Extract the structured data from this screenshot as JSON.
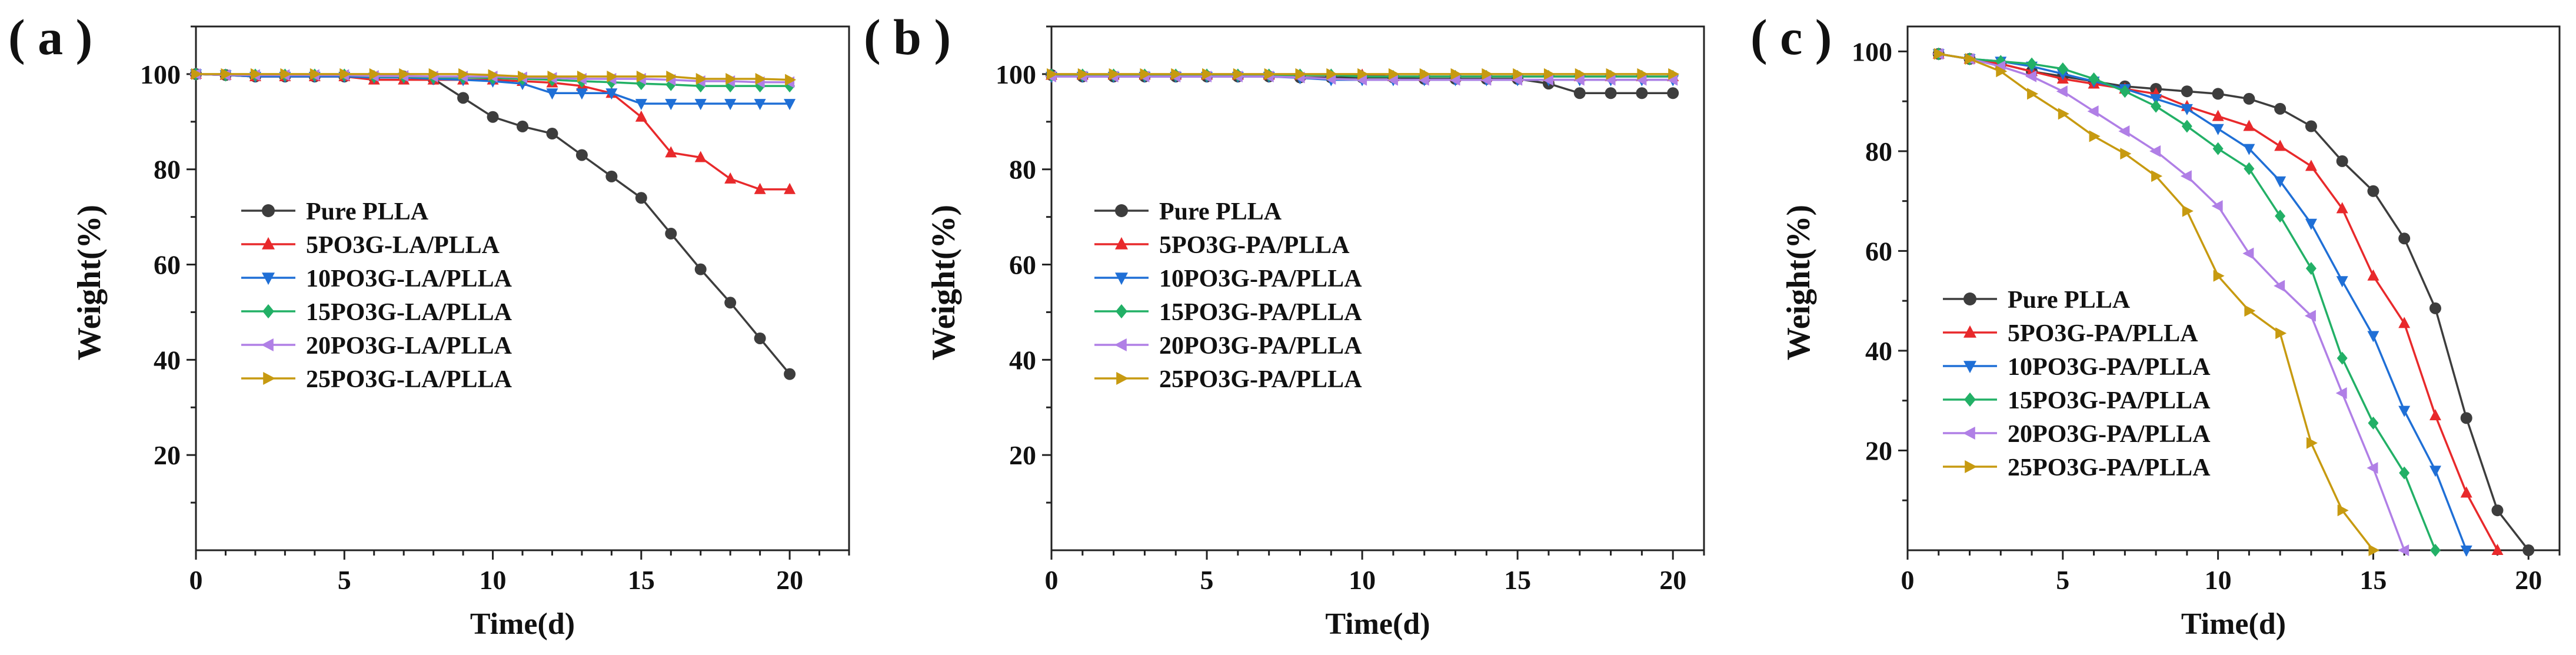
{
  "colors": {
    "pure": "#3d3d3d",
    "p5": "#e8292b",
    "p10": "#1f6fd6",
    "p15": "#22b066",
    "p20": "#b07fe6",
    "p25": "#c79a10"
  },
  "chart_data": [
    {
      "panel_label": "( a )",
      "type": "line",
      "xlabel": "Time(d)",
      "ylabel": "Weight(%)",
      "xlim": [
        0,
        22
      ],
      "ylim": [
        0,
        110
      ],
      "xticks": [
        0,
        5,
        10,
        15,
        20
      ],
      "yticks": [
        20,
        40,
        60,
        80,
        100
      ],
      "legend_position": "center-left",
      "series": [
        {
          "name": "Pure PLLA",
          "color": "pure",
          "marker": "circle",
          "x": [
            0,
            1,
            2,
            3,
            4,
            5,
            6,
            7,
            8,
            9,
            10,
            11,
            12,
            13,
            14,
            15,
            16,
            17,
            18,
            19,
            20
          ],
          "y": [
            100,
            99.8,
            99.5,
            99.5,
            99.5,
            99.5,
            99.3,
            99.5,
            99,
            95,
            91,
            89,
            87.5,
            83,
            78.5,
            74,
            66.5,
            59,
            52,
            44.5,
            37
          ]
        },
        {
          "name": "5PO3G-LA/PLLA",
          "color": "p5",
          "marker": "triangle-up",
          "x": [
            0,
            1,
            2,
            3,
            4,
            5,
            6,
            7,
            8,
            9,
            10,
            11,
            12,
            13,
            14,
            15,
            16,
            17,
            18,
            19,
            20
          ],
          "y": [
            100,
            99.8,
            99.5,
            99.5,
            99.5,
            99.5,
            98.8,
            98.8,
            98.8,
            98.8,
            98.8,
            98.5,
            98.2,
            97.5,
            96,
            91,
            83.5,
            82.5,
            78,
            75.8,
            75.8
          ]
        },
        {
          "name": "10PO3G-LA/PLLA",
          "color": "p10",
          "marker": "triangle-down",
          "x": [
            0,
            1,
            2,
            3,
            4,
            5,
            6,
            7,
            8,
            9,
            10,
            11,
            12,
            13,
            14,
            15,
            16,
            17,
            18,
            19,
            20
          ],
          "y": [
            100,
            99.8,
            99.5,
            99.5,
            99.5,
            99.5,
            99.3,
            99.3,
            99,
            98.8,
            98.5,
            98,
            96,
            96,
            96,
            93.8,
            93.8,
            93.8,
            93.8,
            93.8,
            93.8
          ]
        },
        {
          "name": "15PO3G-LA/PLLA",
          "color": "p15",
          "marker": "diamond",
          "x": [
            0,
            1,
            2,
            3,
            4,
            5,
            6,
            7,
            8,
            9,
            10,
            11,
            12,
            13,
            14,
            15,
            16,
            17,
            18,
            19,
            20
          ],
          "y": [
            100,
            99.8,
            99.8,
            99.8,
            99.8,
            99.8,
            99.5,
            99.5,
            99.3,
            99.3,
            99.2,
            99,
            98.8,
            98.5,
            98.3,
            98,
            97.8,
            97.5,
            97.5,
            97.5,
            97.5
          ]
        },
        {
          "name": "20PO3G-LA/PLLA",
          "color": "p20",
          "marker": "triangle-left",
          "x": [
            0,
            1,
            2,
            3,
            4,
            5,
            6,
            7,
            8,
            9,
            10,
            11,
            12,
            13,
            14,
            15,
            16,
            17,
            18,
            19,
            20
          ],
          "y": [
            100,
            99.8,
            99.8,
            99.8,
            99.8,
            99.8,
            99.6,
            99.6,
            99.5,
            99.5,
            99.5,
            99.3,
            99.2,
            99,
            99,
            99,
            98.8,
            98.5,
            98.5,
            98.3,
            98.3
          ]
        },
        {
          "name": "25PO3G-LA/PLLA",
          "color": "p25",
          "marker": "triangle-right",
          "x": [
            0,
            1,
            2,
            3,
            4,
            5,
            6,
            7,
            8,
            9,
            10,
            11,
            12,
            13,
            14,
            15,
            16,
            17,
            18,
            19,
            20
          ],
          "y": [
            100,
            100,
            100,
            100,
            100,
            100,
            100,
            100,
            100,
            100,
            99.8,
            99.5,
            99.5,
            99.5,
            99.5,
            99.5,
            99.5,
            99,
            99,
            99,
            98.8
          ]
        }
      ]
    },
    {
      "panel_label": "( b )",
      "type": "line",
      "xlabel": "Time(d)",
      "ylabel": "Weight(%)",
      "xlim": [
        0,
        21
      ],
      "ylim": [
        0,
        110
      ],
      "xticks": [
        0,
        5,
        10,
        15,
        20
      ],
      "yticks": [
        20,
        40,
        60,
        80,
        100
      ],
      "legend_position": "center-left",
      "series": [
        {
          "name": "Pure PLLA",
          "color": "pure",
          "marker": "circle",
          "x": [
            0,
            1,
            2,
            3,
            4,
            5,
            6,
            7,
            8,
            9,
            10,
            11,
            12,
            13,
            14,
            15,
            16,
            17,
            18,
            19,
            20
          ],
          "y": [
            99.8,
            99.5,
            99.5,
            99.5,
            99.5,
            99.5,
            99.5,
            99.5,
            99.3,
            99.3,
            99.3,
            99.3,
            99,
            99,
            99,
            99,
            98,
            96,
            96,
            96,
            96
          ]
        },
        {
          "name": "5PO3G-PA/PLLA",
          "color": "p5",
          "marker": "triangle-up",
          "x": [
            0,
            1,
            2,
            3,
            4,
            5,
            6,
            7,
            8,
            9,
            10,
            11,
            12,
            13,
            14,
            15,
            16,
            17,
            18,
            19,
            20
          ],
          "y": [
            99.8,
            99.8,
            99.8,
            99.8,
            99.8,
            99.8,
            99.8,
            99.8,
            99.8,
            99.8,
            99.8,
            99.5,
            99.5,
            99.5,
            99.5,
            99.5,
            99.5,
            99.5,
            99.5,
            99.5,
            99.5
          ]
        },
        {
          "name": "10PO3G-PA/PLLA",
          "color": "p10",
          "marker": "triangle-down",
          "x": [
            0,
            1,
            2,
            3,
            4,
            5,
            6,
            7,
            8,
            9,
            10,
            11,
            12,
            13,
            14,
            15,
            16,
            17,
            18,
            19,
            20
          ],
          "y": [
            99.5,
            99.5,
            99.5,
            99.5,
            99.5,
            99.5,
            99.5,
            99.5,
            99.2,
            98.8,
            98.8,
            98.8,
            98.8,
            98.8,
            98.8,
            98.8,
            98.8,
            98.8,
            98.8,
            98.8,
            98.8
          ]
        },
        {
          "name": "15PO3G-PA/PLLA",
          "color": "p15",
          "marker": "diamond",
          "x": [
            0,
            1,
            2,
            3,
            4,
            5,
            6,
            7,
            8,
            9,
            10,
            11,
            12,
            13,
            14,
            15,
            16,
            17,
            18,
            19,
            20
          ],
          "y": [
            99.8,
            99.8,
            99.8,
            99.8,
            99.8,
            99.8,
            99.8,
            99.8,
            99.8,
            99.8,
            99.5,
            99.5,
            99.5,
            99.5,
            99.5,
            99.5,
            99.5,
            99.5,
            99.5,
            99.5,
            99.5
          ]
        },
        {
          "name": "20PO3G-PA/PLLA",
          "color": "p20",
          "marker": "triangle-left",
          "x": [
            0,
            1,
            2,
            3,
            4,
            5,
            6,
            7,
            8,
            9,
            10,
            11,
            12,
            13,
            14,
            15,
            16,
            17,
            18,
            19,
            20
          ],
          "y": [
            99.5,
            99.5,
            99.5,
            99.5,
            99.5,
            99.5,
            99.5,
            99.5,
            99.3,
            99,
            98.8,
            98.8,
            98.8,
            98.8,
            98.8,
            98.8,
            98.8,
            98.8,
            98.8,
            98.8,
            98.8
          ]
        },
        {
          "name": "25PO3G-PA/PLLA",
          "color": "p25",
          "marker": "triangle-right",
          "x": [
            0,
            1,
            2,
            3,
            4,
            5,
            6,
            7,
            8,
            9,
            10,
            11,
            12,
            13,
            14,
            15,
            16,
            17,
            18,
            19,
            20
          ],
          "y": [
            100,
            100,
            100,
            100,
            100,
            100,
            100,
            100,
            100,
            100,
            100,
            100,
            100,
            100,
            100,
            100,
            100,
            100,
            100,
            100,
            100
          ]
        }
      ]
    },
    {
      "panel_label": "( c )",
      "type": "line",
      "xlabel": "Time(d)",
      "ylabel": "Weight(%)",
      "xlim": [
        0,
        21
      ],
      "ylim": [
        0,
        105
      ],
      "xticks": [
        0,
        5,
        10,
        15,
        20
      ],
      "yticks": [
        20,
        40,
        60,
        80,
        100
      ],
      "legend_position": "lower-left",
      "series": [
        {
          "name": "Pure PLLA",
          "color": "pure",
          "marker": "circle",
          "x": [
            1,
            2,
            3,
            4,
            5,
            6,
            7,
            8,
            9,
            10,
            11,
            12,
            13,
            14,
            15,
            16,
            17,
            18,
            19,
            20
          ],
          "y": [
            99.5,
            98.5,
            97.5,
            96,
            95,
            94,
            93,
            92.5,
            92,
            91.5,
            90.5,
            88.5,
            85,
            78,
            72,
            62.5,
            48.5,
            26.5,
            8,
            0
          ]
        },
        {
          "name": "5PO3G-PA/PLLA",
          "color": "p5",
          "marker": "triangle-up",
          "x": [
            1,
            2,
            3,
            4,
            5,
            6,
            7,
            8,
            9,
            10,
            11,
            12,
            13,
            14,
            15,
            16,
            17,
            18,
            19
          ],
          "y": [
            99.5,
            98.5,
            97.5,
            96,
            94.5,
            93.5,
            92.5,
            91.5,
            89,
            87,
            85,
            81,
            77,
            68.5,
            55,
            45.5,
            27,
            11.5,
            0
          ]
        },
        {
          "name": "10PO3G-PA/PLLA",
          "color": "p10",
          "marker": "triangle-down",
          "x": [
            1,
            2,
            3,
            4,
            5,
            6,
            7,
            8,
            9,
            10,
            11,
            12,
            13,
            14,
            15,
            16,
            17,
            18
          ],
          "y": [
            99.5,
            98.5,
            98,
            97,
            95.5,
            94,
            92.5,
            90.5,
            88.5,
            84.5,
            80.5,
            74,
            65.5,
            54,
            43,
            28,
            16,
            0
          ]
        },
        {
          "name": "15PO3G-PA/PLLA",
          "color": "p15",
          "marker": "diamond",
          "x": [
            1,
            2,
            3,
            4,
            5,
            6,
            7,
            8,
            9,
            10,
            11,
            12,
            13,
            14,
            15,
            16,
            17
          ],
          "y": [
            99.5,
            98.5,
            98,
            97.5,
            96.5,
            94.5,
            92,
            89,
            85,
            80.5,
            76.5,
            67,
            56.5,
            38.5,
            25.5,
            15.5,
            0
          ]
        },
        {
          "name": "20PO3G-PA/PLLA",
          "color": "p20",
          "marker": "triangle-left",
          "x": [
            1,
            2,
            3,
            4,
            5,
            6,
            7,
            8,
            9,
            10,
            11,
            12,
            13,
            14,
            15,
            16
          ],
          "y": [
            99.5,
            98.5,
            97,
            95,
            92,
            88,
            84,
            80,
            75,
            69,
            59.5,
            53,
            47,
            31.5,
            16.5,
            0
          ]
        },
        {
          "name": "25PO3G-PA/PLLA",
          "color": "p25",
          "marker": "triangle-right",
          "x": [
            1,
            2,
            3,
            4,
            5,
            6,
            7,
            8,
            9,
            10,
            11,
            12,
            13,
            14,
            15
          ],
          "y": [
            99.5,
            98.5,
            96,
            91.5,
            87.5,
            83,
            79.5,
            75,
            68,
            55,
            48,
            43.5,
            21.5,
            8,
            0
          ]
        }
      ]
    }
  ]
}
